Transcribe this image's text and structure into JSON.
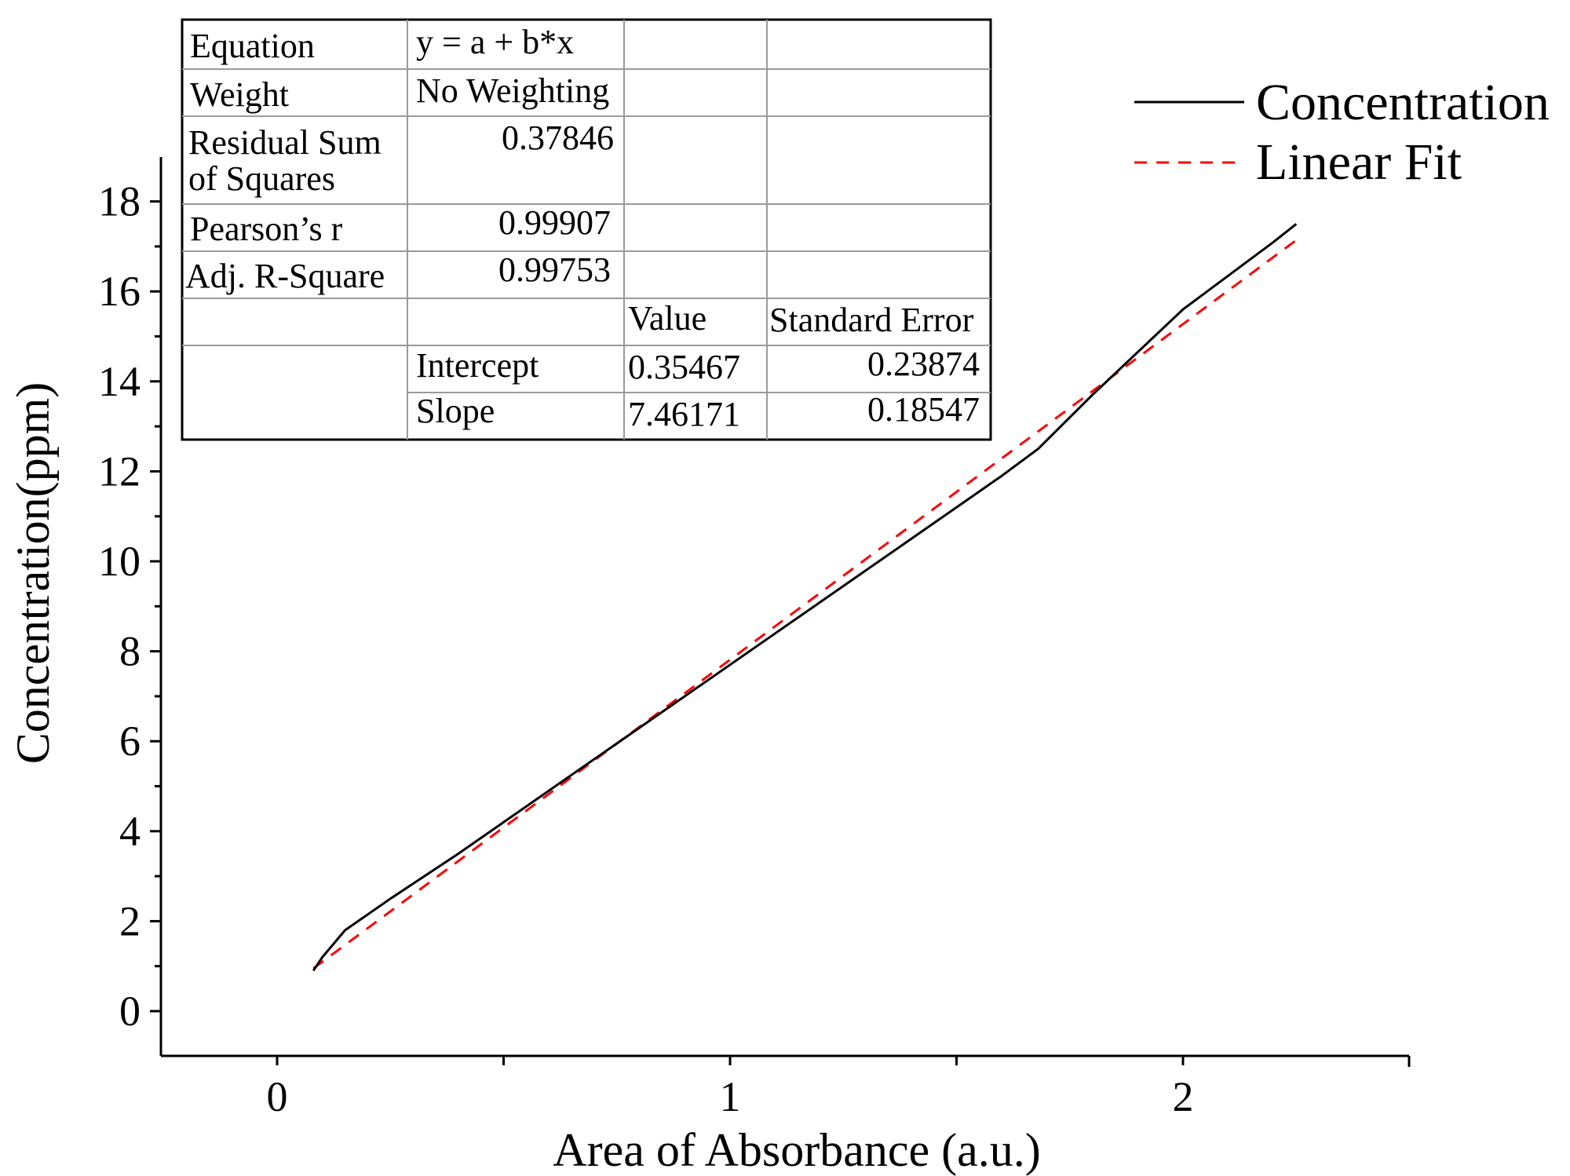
{
  "chart_data": {
    "type": "line",
    "xlabel": "Area of Absorbance (a.u.)",
    "ylabel": "Concentration(ppm)",
    "xlim": [
      -0.25,
      2.5
    ],
    "ylim": [
      -1,
      19
    ],
    "x_ticks": [
      0,
      1,
      2
    ],
    "y_ticks": [
      0,
      2,
      4,
      6,
      8,
      10,
      12,
      14,
      16,
      18
    ],
    "legend_position": "top-right",
    "series": [
      {
        "name": "Concentration",
        "style": "solid",
        "color": "#000000",
        "x": [
          0.08,
          0.1,
          0.15,
          0.25,
          0.4,
          0.6,
          0.8,
          1.0,
          1.2,
          1.4,
          1.6,
          1.68,
          1.8,
          2.0,
          2.2,
          2.25
        ],
        "y": [
          0.9,
          1.2,
          1.8,
          2.5,
          3.5,
          4.9,
          6.3,
          7.7,
          9.1,
          10.5,
          11.9,
          12.5,
          13.7,
          15.6,
          17.1,
          17.5
        ]
      },
      {
        "name": "Linear Fit",
        "style": "dashed",
        "color": "#ff0000",
        "x": [
          0.08,
          2.25
        ],
        "y": [
          0.95,
          17.14
        ]
      }
    ],
    "fit_table": {
      "rows": [
        {
          "label": "Equation",
          "value": "y = a + b*x"
        },
        {
          "label": "Weight",
          "value": "No Weighting"
        },
        {
          "label_line1": "Residual Sum",
          "label_line2": "of Squares",
          "value": "0.37846"
        },
        {
          "label": "Pearson’s r",
          "value": "0.99907"
        },
        {
          "label": "Adj. R-Square",
          "value": "0.99753"
        }
      ],
      "headers": {
        "value": "Value",
        "error": "Standard Error"
      },
      "params": [
        {
          "name": "Intercept",
          "value": "0.35467",
          "error": "0.23874"
        },
        {
          "name": "Slope",
          "value": "7.46171",
          "error": "0.18547"
        }
      ]
    }
  }
}
